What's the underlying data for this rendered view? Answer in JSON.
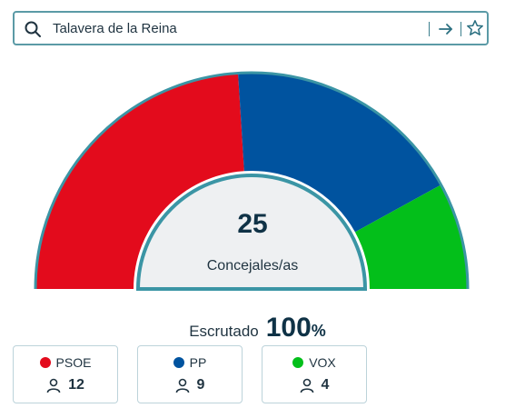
{
  "search": {
    "value": "Talavera de la Reina"
  },
  "icons": {
    "search": "search-icon",
    "go": "arrow-right-icon",
    "favorite": "star-icon",
    "seats": "user-icon"
  },
  "summary": {
    "total_seats": "25",
    "seats_label": "Concejales/as",
    "scrutiny_label": "Escrutado",
    "scrutiny_value": "100",
    "scrutiny_unit": "%"
  },
  "parties": [
    {
      "name": "PSOE",
      "seats": "12",
      "color": "#e30b1c"
    },
    {
      "name": "PP",
      "seats": "9",
      "color": "#00539f"
    },
    {
      "name": "VOX",
      "seats": "4",
      "color": "#03bf1a"
    }
  ],
  "chart_data": {
    "type": "pie",
    "variant": "semicircle-parliament",
    "total": 25,
    "categories": [
      "PSOE",
      "PP",
      "VOX"
    ],
    "values": [
      12,
      9,
      4
    ],
    "colors": [
      "#e30b1c",
      "#00539f",
      "#03bf1a"
    ],
    "scrutiny_percent": 100
  }
}
